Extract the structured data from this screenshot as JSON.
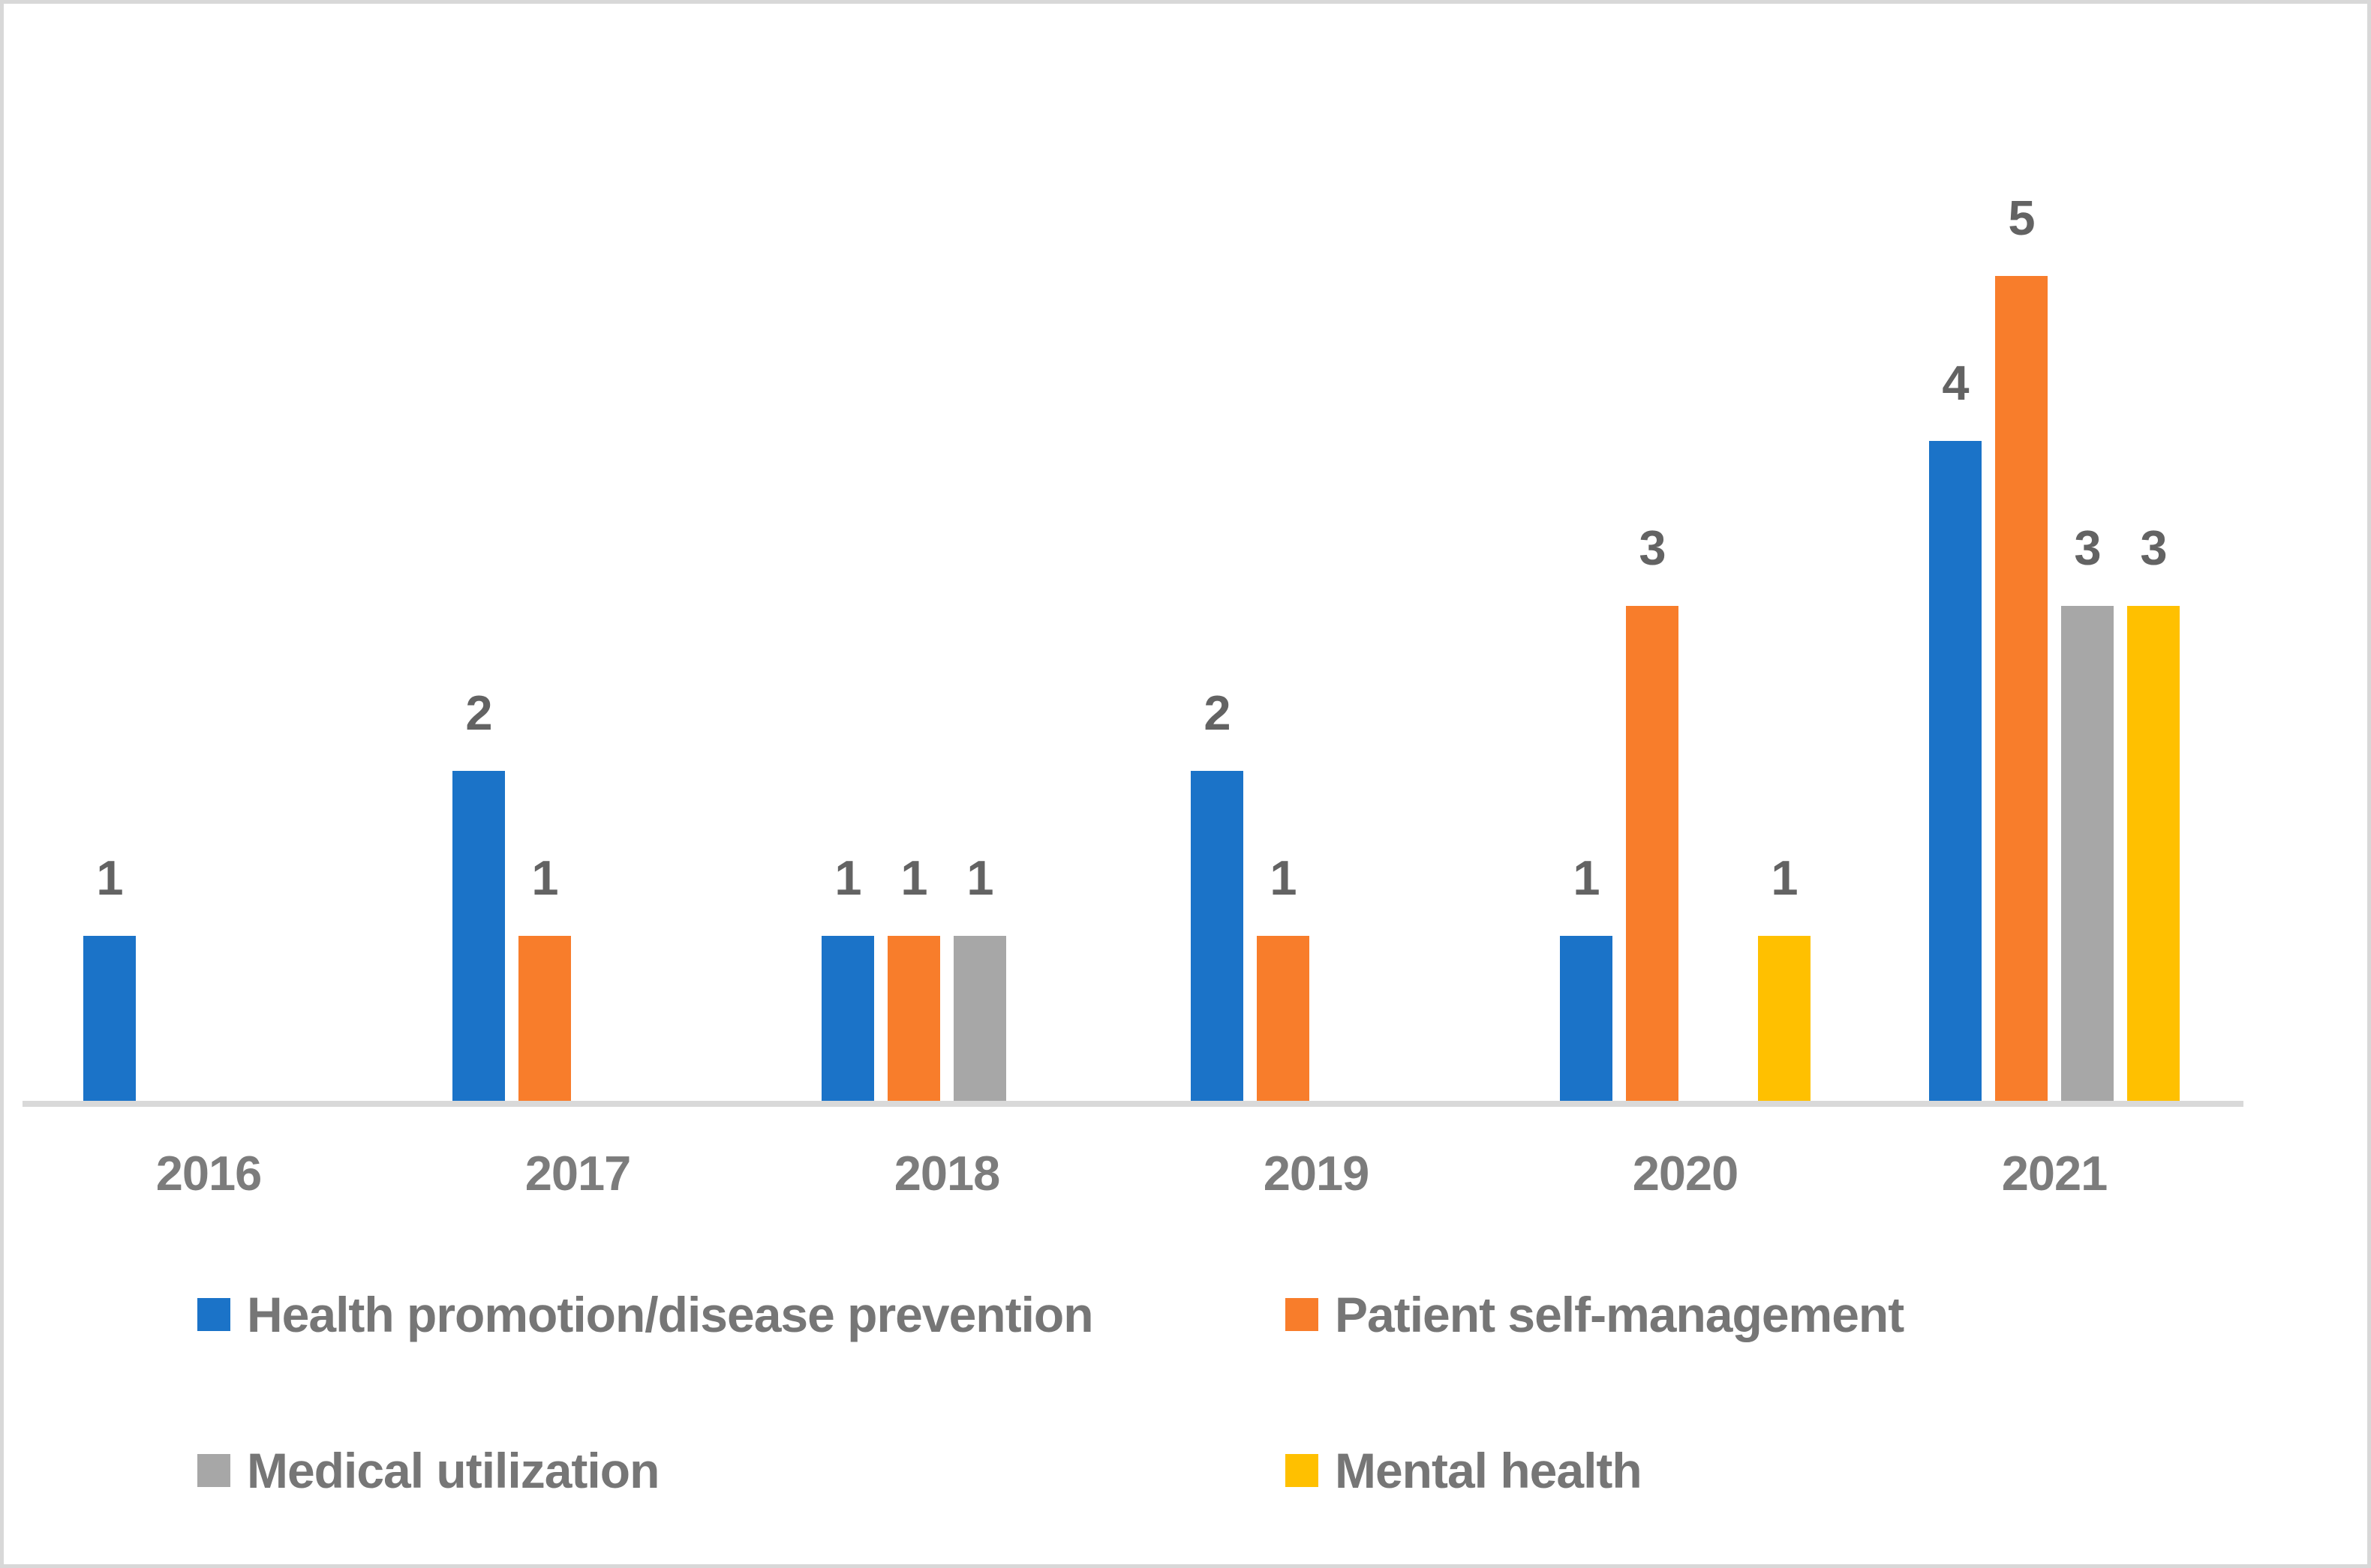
{
  "chart_data": {
    "type": "bar",
    "title": "",
    "categories": [
      "2016",
      "2017",
      "2018",
      "2019",
      "2020",
      "2021"
    ],
    "series": [
      {
        "name": "Health promotion/disease prevention",
        "color": "#1b73c8",
        "values": [
          1,
          2,
          1,
          2,
          1,
          4
        ]
      },
      {
        "name": "Patient self-management",
        "color": "#f87d2b",
        "values": [
          null,
          1,
          1,
          1,
          3,
          5
        ]
      },
      {
        "name": "Medical utilization",
        "color": "#a7a7a7",
        "values": [
          null,
          null,
          1,
          null,
          null,
          3
        ]
      },
      {
        "name": "Mental health",
        "color": "#ffc000",
        "values": [
          null,
          null,
          null,
          null,
          1,
          3
        ]
      }
    ],
    "ylim": [
      0,
      5
    ],
    "grid": false,
    "y_axis_visible": false,
    "data_labels": true,
    "legend_position": "bottom",
    "colors": {
      "background": "#ffffff",
      "frame_border": "#d8d8d8",
      "axis_line": "#d9d9d9",
      "data_label_text": "#636363",
      "tick_label_text": "#7c7c7c",
      "legend_text": "#767676"
    }
  }
}
